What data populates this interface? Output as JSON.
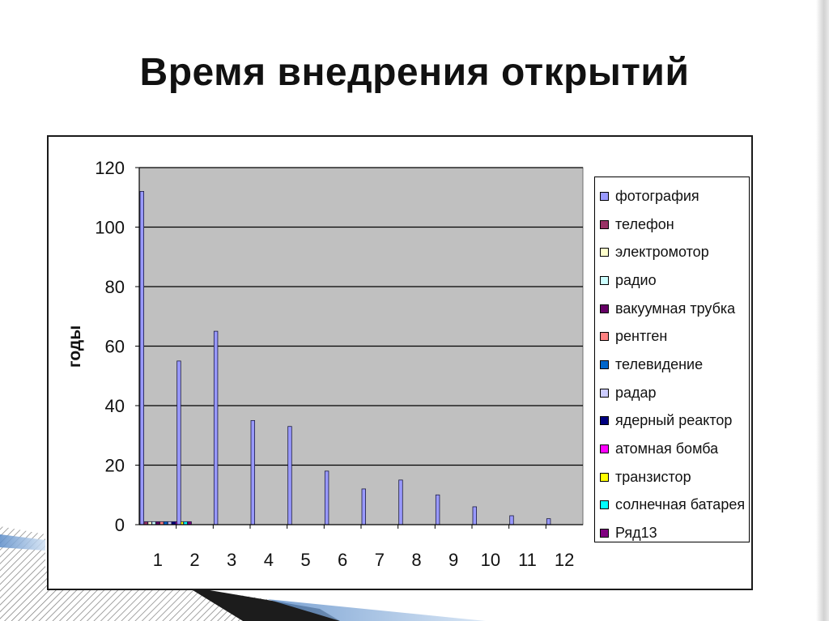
{
  "slide": {
    "title": "Время внедрения открытий"
  },
  "colors": {
    "plot_background": "#c0c0c0",
    "gridline": "#000000",
    "accent_dark": "#1c1c1c"
  },
  "chart_data": {
    "type": "bar",
    "title": "",
    "xlabel": "",
    "ylabel": "годы",
    "ylim": [
      0,
      120
    ],
    "yticks": [
      0,
      20,
      40,
      60,
      80,
      100,
      120
    ],
    "grid": true,
    "legend_position": "right",
    "categories": [
      "1",
      "2",
      "3",
      "4",
      "5",
      "6",
      "7",
      "8",
      "9",
      "10",
      "11",
      "12"
    ],
    "series": [
      {
        "name": "фотография",
        "color": "#9999ff",
        "values": [
          112,
          55,
          65,
          35,
          33,
          18,
          12,
          15,
          10,
          6,
          3,
          2
        ]
      },
      {
        "name": "телефон",
        "color": "#993366",
        "values": [
          1,
          0,
          0,
          0,
          0,
          0,
          0,
          0,
          0,
          0,
          0,
          0
        ]
      },
      {
        "name": "электромотор",
        "color": "#ffffcc",
        "values": [
          1,
          0,
          0,
          0,
          0,
          0,
          0,
          0,
          0,
          0,
          0,
          0
        ]
      },
      {
        "name": "радио",
        "color": "#ccffff",
        "values": [
          1,
          0,
          0,
          0,
          0,
          0,
          0,
          0,
          0,
          0,
          0,
          0
        ]
      },
      {
        "name": "вакуумная трубка",
        "color": "#660066",
        "values": [
          1,
          0,
          0,
          0,
          0,
          0,
          0,
          0,
          0,
          0,
          0,
          0
        ]
      },
      {
        "name": "рентген",
        "color": "#ff8080",
        "values": [
          1,
          0,
          0,
          0,
          0,
          0,
          0,
          0,
          0,
          0,
          0,
          0
        ]
      },
      {
        "name": "телевидение",
        "color": "#0066cc",
        "values": [
          1,
          0,
          0,
          0,
          0,
          0,
          0,
          0,
          0,
          0,
          0,
          0
        ]
      },
      {
        "name": "радар",
        "color": "#ccccff",
        "values": [
          1,
          0,
          0,
          0,
          0,
          0,
          0,
          0,
          0,
          0,
          0,
          0
        ]
      },
      {
        "name": "ядерный реактор",
        "color": "#000080",
        "values": [
          1,
          0,
          0,
          0,
          0,
          0,
          0,
          0,
          0,
          0,
          0,
          0
        ]
      },
      {
        "name": "атомная бомба",
        "color": "#ff00ff",
        "values": [
          1,
          0,
          0,
          0,
          0,
          0,
          0,
          0,
          0,
          0,
          0,
          0
        ]
      },
      {
        "name": "транзистор",
        "color": "#ffff00",
        "values": [
          1,
          0,
          0,
          0,
          0,
          0,
          0,
          0,
          0,
          0,
          0,
          0
        ]
      },
      {
        "name": "солнечная батарея",
        "color": "#00ffff",
        "values": [
          1,
          0,
          0,
          0,
          0,
          0,
          0,
          0,
          0,
          0,
          0,
          0
        ]
      },
      {
        "name": "Ряд13",
        "color": "#800080",
        "values": [
          1,
          0,
          0,
          0,
          0,
          0,
          0,
          0,
          0,
          0,
          0,
          0
        ]
      }
    ]
  }
}
